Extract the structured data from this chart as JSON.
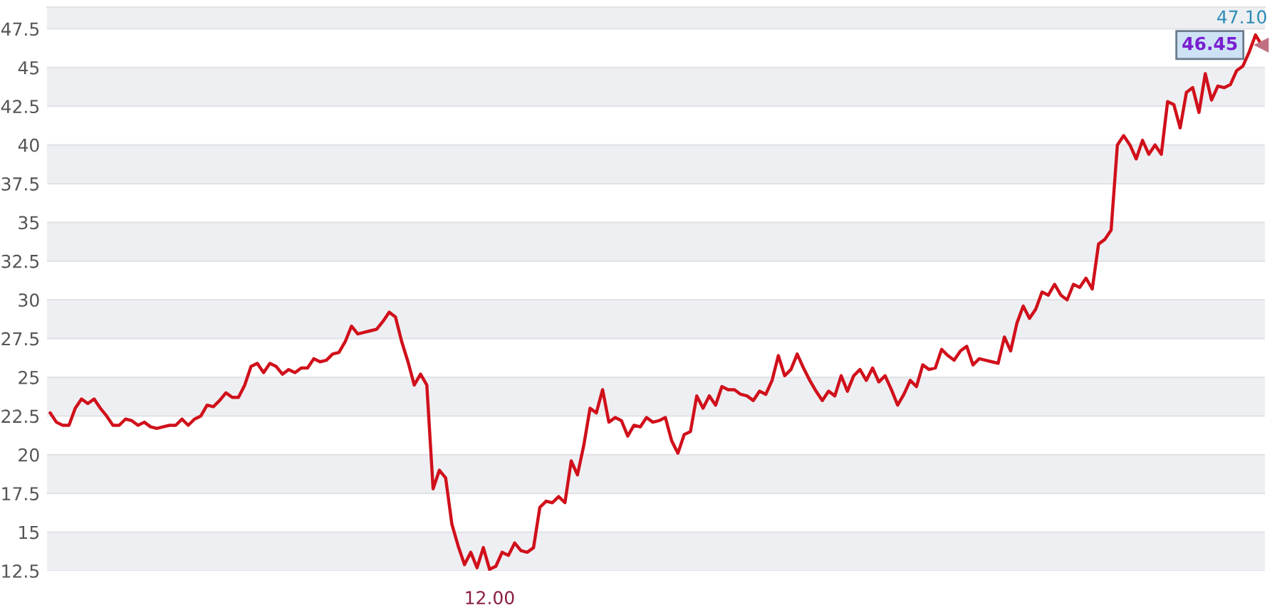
{
  "chart_data": {
    "type": "line",
    "categories": [
      null,
      null,
      null,
      null,
      null,
      null,
      null,
      null,
      null,
      null,
      null,
      null,
      null,
      null,
      null,
      null,
      null,
      null,
      null,
      null,
      null,
      null,
      null,
      null,
      null,
      null,
      null,
      null,
      null,
      null,
      null,
      null,
      null,
      null,
      null,
      null,
      null,
      null,
      null,
      null,
      null,
      null,
      null,
      null,
      null,
      null,
      null,
      null,
      null,
      null,
      null,
      null,
      null,
      null,
      null,
      null,
      null,
      null,
      null,
      null,
      null,
      null,
      null,
      null,
      null,
      null,
      null,
      null,
      null,
      null,
      null,
      null,
      null,
      null,
      null,
      null,
      null,
      null,
      null,
      null,
      null,
      null,
      null,
      null,
      null,
      null,
      null,
      null,
      null,
      null,
      null,
      null,
      null,
      null,
      null,
      null,
      null,
      null,
      null,
      null,
      null,
      null,
      null,
      null,
      null,
      null,
      null,
      null,
      null,
      null,
      null,
      null,
      null,
      null,
      null,
      null,
      null,
      null,
      null,
      null,
      null,
      null,
      null,
      null,
      null,
      null,
      null,
      null,
      null,
      null,
      null,
      null,
      null,
      null,
      null,
      null,
      null,
      null,
      null,
      null,
      null,
      null,
      null,
      null,
      null,
      null,
      null,
      null,
      null,
      null,
      null,
      null,
      null,
      null,
      null,
      null,
      null,
      null,
      null,
      null,
      null,
      null,
      null,
      null,
      null,
      null,
      null,
      null,
      null,
      null,
      null,
      null,
      null,
      null,
      null,
      null,
      null,
      null,
      null,
      null,
      null,
      null,
      null,
      null,
      null,
      null,
      null,
      null,
      null,
      null,
      null,
      null,
      null,
      null
    ],
    "series": [
      {
        "color": "#d0101b",
        "values": [
          22.7,
          22.1,
          21.9,
          21.9,
          23.0,
          23.6,
          23.3,
          23.6,
          23.0,
          22.5,
          21.9,
          21.9,
          22.3,
          22.2,
          21.9,
          22.1,
          21.8,
          21.7,
          21.8,
          21.9,
          21.9,
          22.3,
          21.9,
          22.3,
          22.5,
          23.2,
          23.1,
          23.5,
          24.0,
          23.7,
          23.7,
          24.5,
          25.7,
          25.9,
          25.3,
          25.9,
          25.7,
          25.2,
          25.5,
          25.3,
          25.6,
          25.6,
          26.2,
          26.0,
          26.1,
          26.5,
          26.6,
          27.3,
          28.3,
          27.8,
          27.9,
          28.0,
          28.1,
          28.6,
          29.2,
          28.9,
          27.3,
          26.0,
          24.5,
          25.2,
          24.5,
          17.8,
          19.0,
          18.5,
          15.5,
          14.1,
          12.9,
          13.7,
          12.7,
          14.0,
          12.6,
          12.8,
          13.7,
          13.5,
          14.3,
          13.8,
          13.7,
          14.0,
          16.6,
          17.0,
          16.9,
          17.3,
          16.9,
          19.6,
          18.7,
          20.6,
          23.0,
          22.7,
          24.2,
          22.1,
          22.4,
          22.2,
          21.2,
          21.9,
          21.8,
          22.4,
          22.1,
          22.2,
          22.4,
          20.9,
          20.1,
          21.3,
          21.5,
          23.8,
          23.0,
          23.8,
          23.2,
          24.4,
          24.2,
          24.2,
          23.9,
          23.8,
          23.5,
          24.1,
          23.9,
          24.8,
          26.4,
          25.1,
          25.5,
          26.5,
          25.6,
          24.8,
          24.1,
          23.5,
          24.1,
          23.8,
          25.1,
          24.1,
          25.1,
          25.5,
          24.8,
          25.6,
          24.7,
          25.1,
          24.2,
          23.2,
          23.9,
          24.8,
          24.4,
          25.8,
          25.5,
          25.6,
          26.8,
          26.4,
          26.1,
          26.7,
          27.0,
          25.8,
          26.2,
          26.1,
          26.0,
          25.9,
          27.6,
          26.7,
          28.5,
          29.6,
          28.8,
          29.4,
          30.5,
          30.3,
          31.0,
          30.3,
          30.0,
          31.0,
          30.8,
          31.4,
          30.7,
          33.6,
          33.9,
          34.5,
          40.0,
          40.6,
          40.0,
          39.1,
          40.3,
          39.4,
          40.0,
          39.4,
          42.8,
          42.6,
          41.1,
          43.4,
          43.7,
          42.1,
          44.6,
          42.9,
          43.8,
          43.7,
          43.9,
          44.8,
          45.1,
          46.0,
          47.1,
          46.45
        ]
      }
    ],
    "ylim": [
      12.5,
      48.9
    ],
    "yticks": [
      12.5,
      15,
      17.5,
      20,
      22.5,
      25,
      27.5,
      30,
      32.5,
      35,
      37.5,
      40,
      42.5,
      45,
      47.5
    ],
    "tick_labels": "y",
    "grid": "y",
    "annotations": [
      "12.00",
      "47.10",
      "46.45"
    ]
  }
}
